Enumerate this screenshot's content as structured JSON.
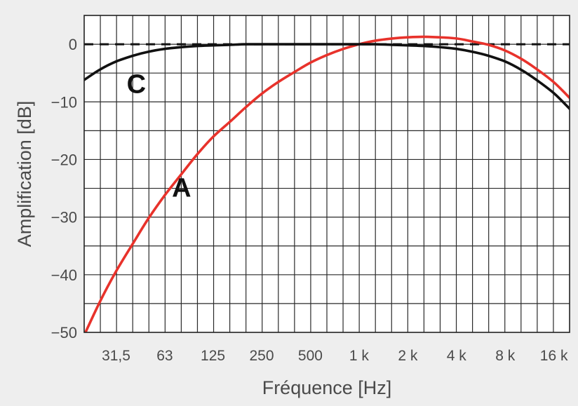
{
  "chart_data": {
    "type": "line",
    "xlabel": "Fréquence [Hz]",
    "ylabel": "Amplification [dB]",
    "x_scale": "log",
    "ylim": [
      -50,
      5
    ],
    "grid": true,
    "reference_line": {
      "y": 0,
      "style": "dashed"
    },
    "x_ticks": [
      {
        "label": "31,5",
        "value": 31.5
      },
      {
        "label": "63",
        "value": 63
      },
      {
        "label": "125",
        "value": 125
      },
      {
        "label": "250",
        "value": 250
      },
      {
        "label": "500",
        "value": 500
      },
      {
        "label": "1 k",
        "value": 1000
      },
      {
        "label": "2 k",
        "value": 2000
      },
      {
        "label": "4 k",
        "value": 4000
      },
      {
        "label": "8 k",
        "value": 8000
      },
      {
        "label": "16 k",
        "value": 16000
      }
    ],
    "y_ticks": [
      {
        "label": "0",
        "value": 0
      },
      {
        "label": "−10",
        "value": -10
      },
      {
        "label": "−20",
        "value": -20
      },
      {
        "label": "−30",
        "value": -30
      },
      {
        "label": "−40",
        "value": -40
      },
      {
        "label": "−50",
        "value": -50
      }
    ],
    "series": [
      {
        "name": "A",
        "color": "#e8322b",
        "x": [
          20,
          25,
          31.5,
          40,
          50,
          63,
          80,
          100,
          125,
          160,
          200,
          250,
          315,
          400,
          500,
          630,
          800,
          1000,
          1250,
          1600,
          2000,
          2500,
          3150,
          4000,
          5000,
          6300,
          8000,
          10000,
          12500,
          16000,
          20000
        ],
        "y": [
          -50.5,
          -44.7,
          -39.4,
          -34.6,
          -30.2,
          -26.2,
          -22.5,
          -19.1,
          -16.1,
          -13.4,
          -10.9,
          -8.6,
          -6.6,
          -4.8,
          -3.2,
          -1.9,
          -0.8,
          0,
          0.6,
          1.0,
          1.2,
          1.3,
          1.2,
          1.0,
          0.5,
          -0.1,
          -1.1,
          -2.5,
          -4.3,
          -6.6,
          -9.3
        ]
      },
      {
        "name": "C",
        "color": "#111111",
        "x": [
          20,
          25,
          31.5,
          40,
          50,
          63,
          80,
          100,
          125,
          160,
          200,
          250,
          315,
          400,
          500,
          630,
          800,
          1000,
          1250,
          1600,
          2000,
          2500,
          3150,
          4000,
          5000,
          6300,
          8000,
          10000,
          12500,
          16000,
          20000
        ],
        "y": [
          -6.2,
          -4.4,
          -3.0,
          -2.0,
          -1.3,
          -0.8,
          -0.5,
          -0.3,
          -0.2,
          -0.1,
          0,
          0,
          0,
          0,
          0,
          0,
          0,
          0,
          0,
          -0.1,
          -0.2,
          -0.3,
          -0.5,
          -0.8,
          -1.3,
          -2.0,
          -3.0,
          -4.4,
          -6.2,
          -8.5,
          -11.2
        ]
      }
    ]
  }
}
